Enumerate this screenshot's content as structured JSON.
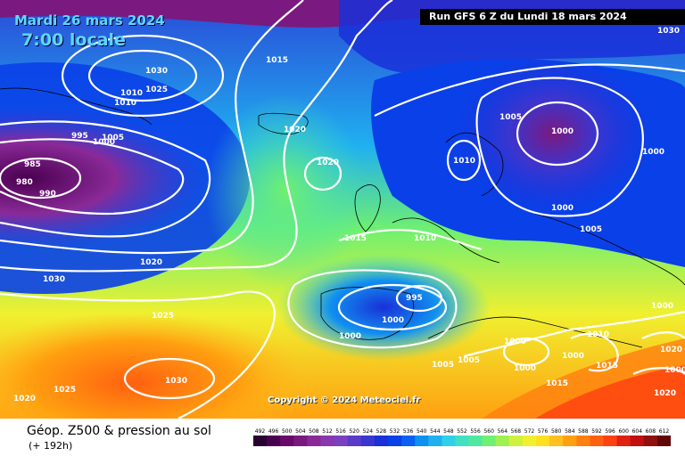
{
  "header": {
    "date": "Mardi 26 mars 2024",
    "time": "7:00 locale",
    "run": "Run GFS 6 Z du Lundi 18 mars 2024"
  },
  "copyright": "Copyright © 2024 Meteociel.fr",
  "footer": {
    "title": "Géop. Z500 & pression au sol",
    "subtitle": "(+ 192h)"
  },
  "scale": {
    "ticks": [
      "492",
      "496",
      "500",
      "504",
      "508",
      "512",
      "516",
      "520",
      "524",
      "528",
      "532",
      "536",
      "540",
      "544",
      "548",
      "552",
      "556",
      "560",
      "564",
      "568",
      "572",
      "576",
      "580",
      "584",
      "588",
      "592",
      "596",
      "600",
      "604",
      "608",
      "612"
    ],
    "colors": [
      "#2a0030",
      "#4a0050",
      "#6a0a6a",
      "#7a1a80",
      "#8a2a98",
      "#8a38b0",
      "#7a40c0",
      "#5a3ac8",
      "#3a36d0",
      "#1a30d8",
      "#0a40e8",
      "#0a60f0",
      "#1090f0",
      "#20b0f0",
      "#30d0e8",
      "#40e0c0",
      "#50e8a0",
      "#70f070",
      "#a0f050",
      "#d0f040",
      "#f0f030",
      "#ffe020",
      "#ffc020",
      "#ffa010",
      "#ff8010",
      "#ff6010",
      "#ff4010",
      "#e02010",
      "#c01010",
      "#901010",
      "#600808"
    ]
  },
  "isobars": [
    "1030",
    "1025",
    "1015",
    "1010",
    "1010",
    "1020",
    "995",
    "1005",
    "1000",
    "985",
    "980",
    "990",
    "1020",
    "1020",
    "1015",
    "1010",
    "1005",
    "1000",
    "1000",
    "1005",
    "1000",
    "1000",
    "1010",
    "1000",
    "995",
    "1000",
    "1000",
    "1030",
    "1025",
    "1030",
    "1020",
    "1025",
    "1030",
    "1005",
    "1005",
    "1000",
    "1000",
    "1010",
    "1000",
    "1015",
    "1020",
    "1020",
    "1015"
  ]
}
